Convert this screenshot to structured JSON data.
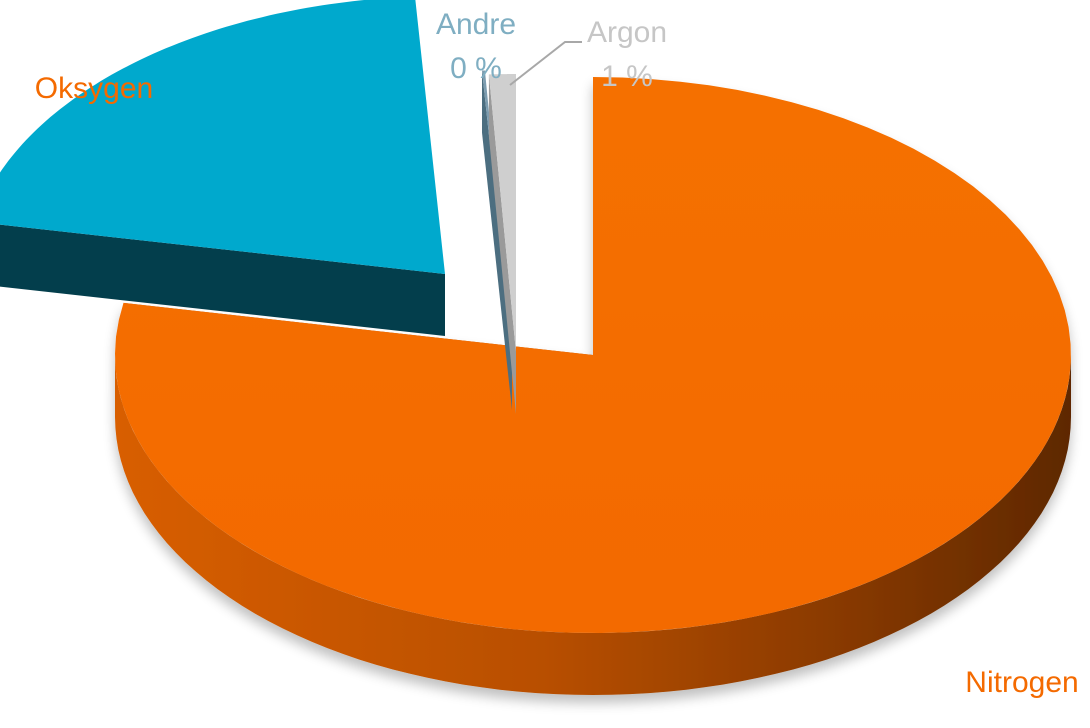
{
  "chart_data": {
    "type": "pie",
    "style": "3d-exploded",
    "slices": [
      {
        "label": "Nitrogen",
        "value": 78,
        "value_label": "",
        "color": "#F46A00",
        "label_color": "#F46A00"
      },
      {
        "label": "Oksygen",
        "value": 21,
        "value_label": "",
        "color": "#00A8CC",
        "label_color": "#F46A00"
      },
      {
        "label": "Andre",
        "value": 0,
        "value_label": "0 %",
        "color": "#8FB9CC",
        "label_color": "#7FAEC2"
      },
      {
        "label": "Argon",
        "value": 1,
        "value_label": "1 %",
        "color": "#C8C8C8",
        "label_color": "#C6C6C6"
      }
    ],
    "legend": "none"
  }
}
